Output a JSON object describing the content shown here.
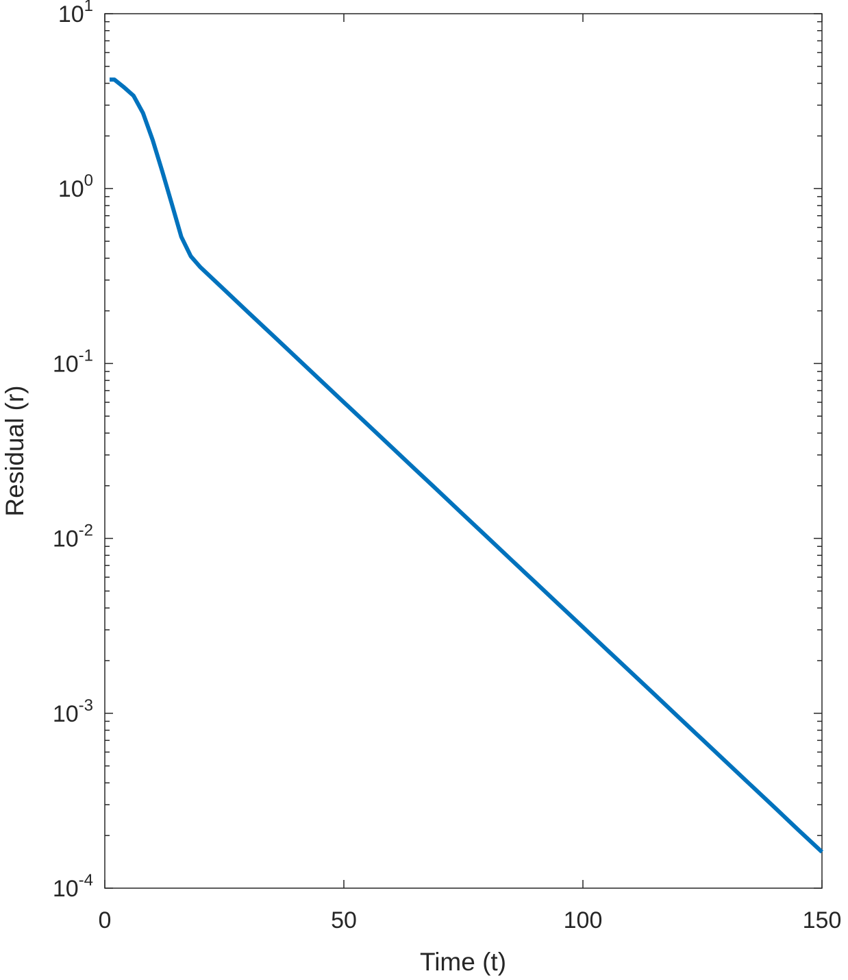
{
  "chart_data": {
    "type": "line",
    "x_label": "Time (t)",
    "y_label": "Residual (r)",
    "x": [
      1,
      2,
      4,
      6,
      8,
      10,
      12,
      14,
      16,
      18,
      20,
      25,
      30,
      35,
      40,
      45,
      50,
      55,
      60,
      65,
      70,
      75,
      80,
      85,
      90,
      95,
      100,
      105,
      110,
      115,
      120,
      125,
      130,
      135,
      140,
      145,
      150
    ],
    "series": [
      {
        "color": "#0072bd",
        "values": [
          4.2,
          4.2,
          3.8,
          3.4,
          2.7,
          1.9,
          1.26,
          0.82,
          0.53,
          0.41,
          0.355,
          0.264,
          0.196,
          0.146,
          0.1086,
          0.0807,
          0.06,
          0.0447,
          0.0332,
          0.0247,
          0.0184,
          0.01366,
          0.01016,
          0.00755,
          0.00562,
          0.00418,
          0.00311,
          0.00231,
          0.00172,
          0.00128,
          0.00095,
          0.000707,
          0.000526,
          0.000391,
          0.000291,
          0.000216,
          0.000161
        ]
      }
    ],
    "xlim": [
      0,
      150
    ],
    "xticks": [
      0,
      50,
      100,
      150
    ],
    "ylim": [
      0.0001,
      10
    ],
    "yscale": "log",
    "yticks": [
      {
        "value": 0.0001,
        "label": "10",
        "exponent": "-4"
      },
      {
        "value": 0.001,
        "label": "10",
        "exponent": "-3"
      },
      {
        "value": 0.01,
        "label": "10",
        "exponent": "-2"
      },
      {
        "value": 0.1,
        "label": "10",
        "exponent": "-1"
      },
      {
        "value": 1,
        "label": "10",
        "exponent": "0"
      },
      {
        "value": 10,
        "label": "10",
        "exponent": "1"
      }
    ],
    "yminorticks": [
      0.0002,
      0.0003,
      0.0004,
      0.0005,
      0.0006,
      0.0007,
      0.0008,
      0.0009,
      0.002,
      0.003,
      0.004,
      0.005,
      0.006,
      0.007,
      0.008,
      0.009,
      0.02,
      0.03,
      0.04,
      0.05,
      0.06,
      0.07,
      0.08,
      0.09,
      0.2,
      0.3,
      0.4,
      0.5,
      0.6,
      0.7,
      0.8,
      0.9,
      2,
      3,
      4,
      5,
      6,
      7,
      8,
      9
    ],
    "grid": false
  }
}
